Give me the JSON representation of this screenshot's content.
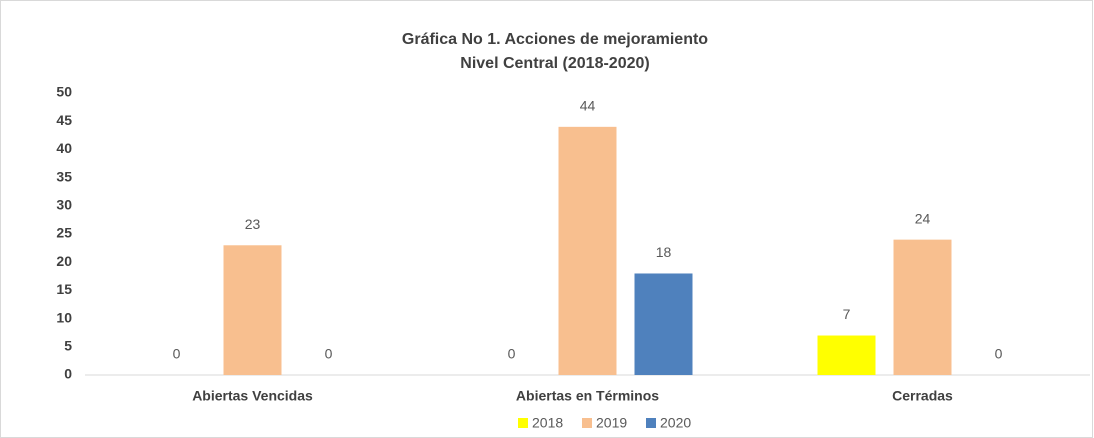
{
  "chart_data": {
    "type": "bar",
    "title": "Gráfica No 1. Acciones de mejoramiento",
    "subtitle": "Nivel Central (2018-2020)",
    "categories": [
      "Abiertas Vencidas",
      "Abiertas en Términos",
      "Cerradas"
    ],
    "series": [
      {
        "name": "2018",
        "color": "#ffff00",
        "values": [
          0,
          0,
          7
        ]
      },
      {
        "name": "2019",
        "color": "#f8bf8f",
        "values": [
          23,
          44,
          24
        ]
      },
      {
        "name": "2020",
        "color": "#4f81bd",
        "values": [
          0,
          18,
          0
        ]
      }
    ],
    "ylim": [
      0,
      50
    ],
    "yticks": [
      0,
      5,
      10,
      15,
      20,
      25,
      30,
      35,
      40,
      45,
      50
    ],
    "grid": false,
    "legend": "bottom"
  }
}
